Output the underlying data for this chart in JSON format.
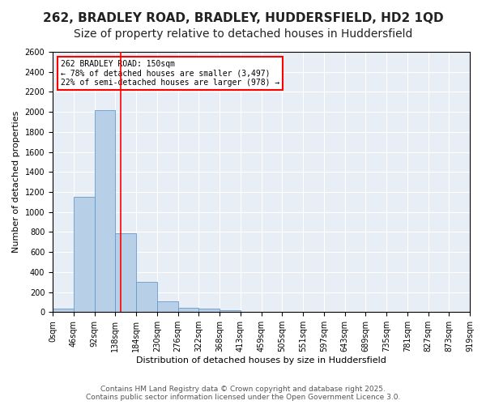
{
  "title1": "262, BRADLEY ROAD, BRADLEY, HUDDERSFIELD, HD2 1QD",
  "title2": "Size of property relative to detached houses in Huddersfield",
  "xlabel": "Distribution of detached houses by size in Huddersfield",
  "ylabel": "Number of detached properties",
  "bar_values": [
    35,
    1150,
    2020,
    790,
    305,
    110,
    45,
    35,
    20,
    5,
    5,
    5,
    0,
    0,
    0,
    0,
    0,
    0,
    0,
    0
  ],
  "x_tick_labels": [
    "0sqm",
    "46sqm",
    "92sqm",
    "138sqm",
    "184sqm",
    "230sqm",
    "276sqm",
    "322sqm",
    "368sqm",
    "413sqm",
    "459sqm",
    "505sqm",
    "551sqm",
    "597sqm",
    "643sqm",
    "689sqm",
    "735sqm",
    "781sqm",
    "827sqm",
    "873sqm",
    "919sqm"
  ],
  "bar_color": "#b8cfe8",
  "bar_edge_color": "#6699cc",
  "annotation_text": "262 BRADLEY ROAD: 150sqm\n← 78% of detached houses are smaller (3,497)\n22% of semi-detached houses are larger (978) →",
  "ylim": [
    0,
    2600
  ],
  "yticks": [
    0,
    200,
    400,
    600,
    800,
    1000,
    1200,
    1400,
    1600,
    1800,
    2000,
    2200,
    2400,
    2600
  ],
  "background_color": "#e8eef5",
  "footer_line1": "Contains HM Land Registry data © Crown copyright and database right 2025.",
  "footer_line2": "Contains public sector information licensed under the Open Government Licence 3.0.",
  "title_fontsize": 11,
  "subtitle_fontsize": 10,
  "axis_label_fontsize": 8,
  "tick_fontsize": 7,
  "footer_fontsize": 6.5
}
